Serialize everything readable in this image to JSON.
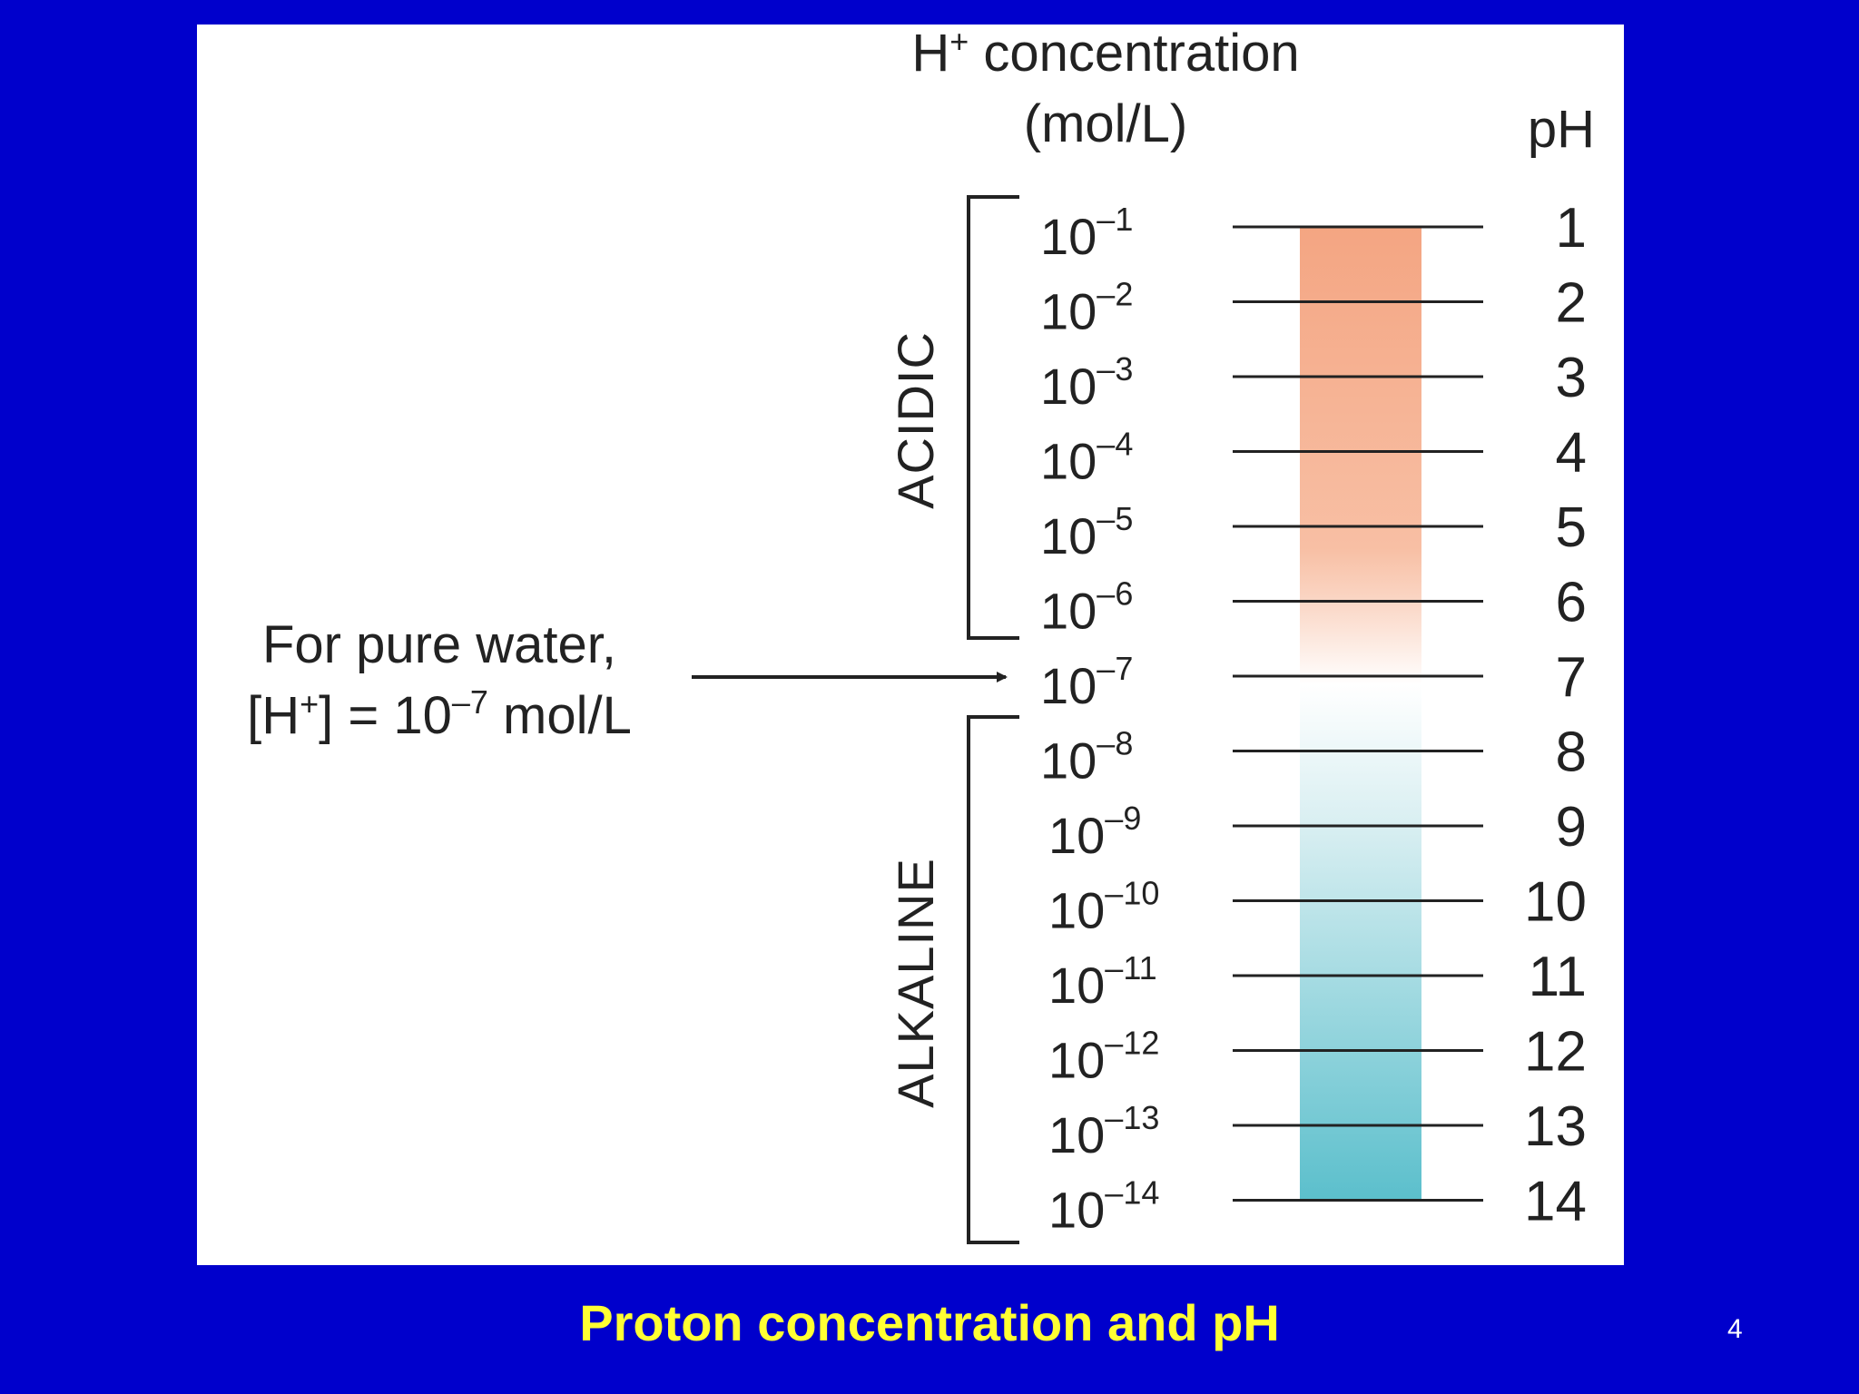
{
  "diagram": {
    "header_concentration": "H",
    "header_concentration_sup": "+",
    "header_concentration_rest": " concentration",
    "header_units": "(mol/L)",
    "header_ph": "pH",
    "acidic_label": "ACIDIC",
    "alkaline_label": "ALKALINE",
    "pure_water_line1": "For pure water,",
    "pure_water_line2_a": "[H",
    "pure_water_line2_sup": "+",
    "pure_water_line2_b": "] = 10",
    "pure_water_line2_exp": "–7",
    "pure_water_line2_c": " mol/L",
    "concentration_base": "10",
    "rows": [
      {
        "exp": "–1",
        "ph": "1"
      },
      {
        "exp": "–2",
        "ph": "2"
      },
      {
        "exp": "–3",
        "ph": "3"
      },
      {
        "exp": "–4",
        "ph": "4"
      },
      {
        "exp": "–5",
        "ph": "5"
      },
      {
        "exp": "–6",
        "ph": "6"
      },
      {
        "exp": "–7",
        "ph": "7"
      },
      {
        "exp": "–8",
        "ph": "8"
      },
      {
        "exp": "–9",
        "ph": "9"
      },
      {
        "exp": "–10",
        "ph": "10"
      },
      {
        "exp": "–11",
        "ph": "11"
      },
      {
        "exp": "–12",
        "ph": "12"
      },
      {
        "exp": "–13",
        "ph": "13"
      },
      {
        "exp": "–14",
        "ph": "14"
      }
    ],
    "colors": {
      "acid": "#f4a582",
      "neutral": "#ffffff",
      "alkaline": "#5bbfcc"
    }
  },
  "slide": {
    "title": "Proton concentration and pH",
    "page_number": "4"
  }
}
